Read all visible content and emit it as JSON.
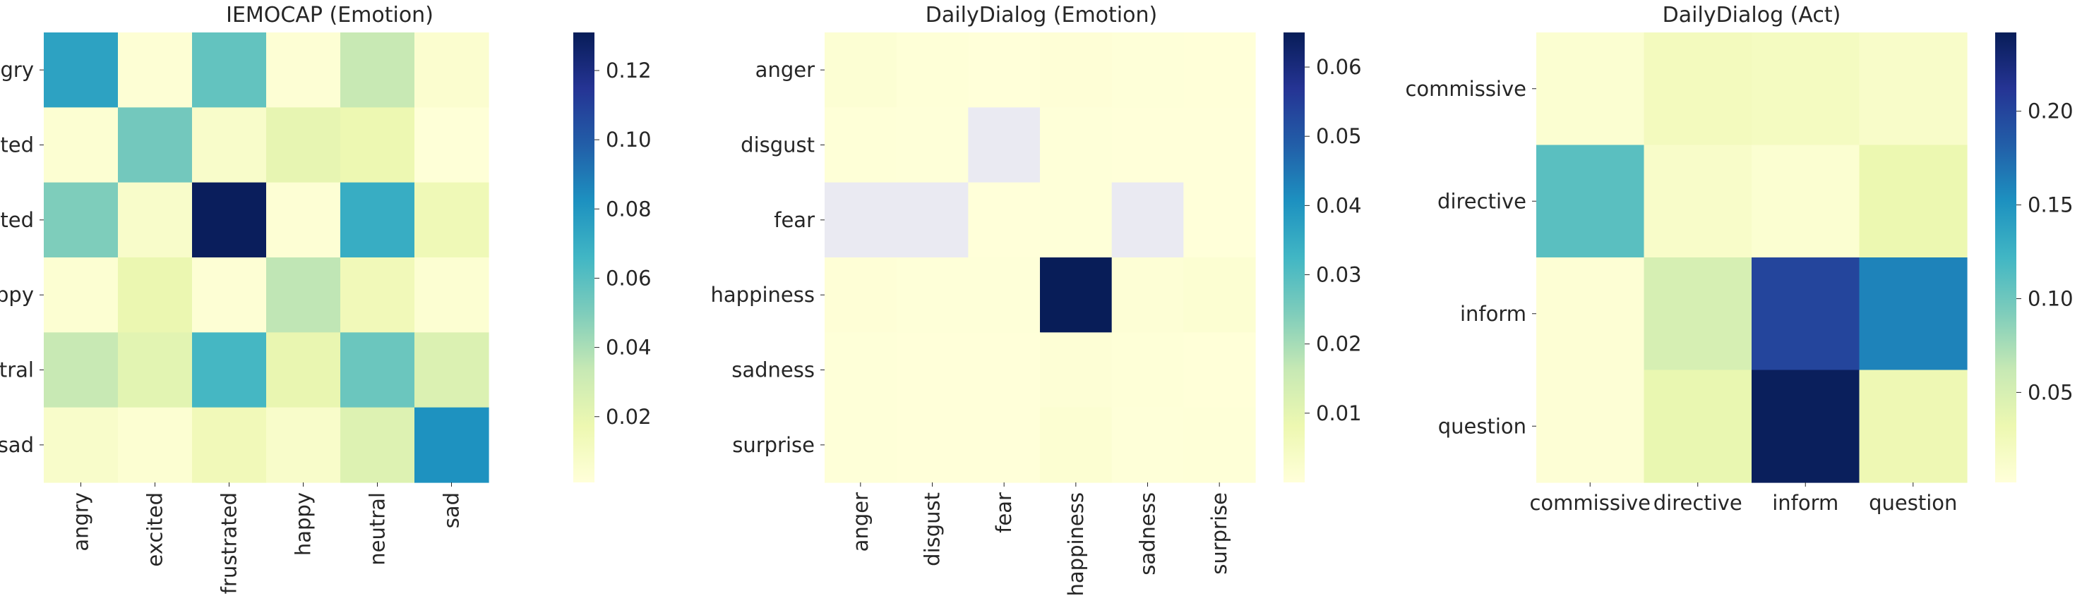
{
  "chart_data": [
    {
      "type": "heatmap",
      "title": "IEMOCAP (Emotion)",
      "xlabel": "",
      "ylabel": "",
      "x_categories": [
        "angry",
        "excited",
        "frustrated",
        "happy",
        "neutral",
        "sad"
      ],
      "y_categories": [
        "angry",
        "excited",
        "frustrated",
        "happy",
        "neutral",
        "sad"
      ],
      "values": [
        [
          0.075,
          0.003,
          0.057,
          0.003,
          0.033,
          0.005
        ],
        [
          0.004,
          0.053,
          0.007,
          0.02,
          0.017,
          0.002
        ],
        [
          0.05,
          0.007,
          0.13,
          0.003,
          0.07,
          0.015
        ],
        [
          0.004,
          0.018,
          0.003,
          0.035,
          0.014,
          0.004
        ],
        [
          0.033,
          0.022,
          0.065,
          0.019,
          0.055,
          0.025
        ],
        [
          0.007,
          0.004,
          0.014,
          0.007,
          0.024,
          0.082
        ]
      ],
      "colorbar": {
        "min": 0.001,
        "max": 0.131,
        "ticks": [
          "0.02",
          "0.04",
          "0.06",
          "0.08",
          "0.10",
          "0.12"
        ],
        "tick_values": [
          0.02,
          0.04,
          0.06,
          0.08,
          0.1,
          0.12
        ],
        "colormap": "YlGnBu"
      }
    },
    {
      "type": "heatmap",
      "title": "DailyDialog (Emotion)",
      "xlabel": "",
      "ylabel": "",
      "x_categories": [
        "anger",
        "disgust",
        "fear",
        "happiness",
        "sadness",
        "surprise"
      ],
      "y_categories": [
        "anger",
        "disgust",
        "fear",
        "happiness",
        "sadness",
        "surprise"
      ],
      "values": [
        [
          0.0012,
          0.0004,
          0.0001,
          0.0006,
          0.0003,
          0.0002
        ],
        [
          0.0004,
          0.0003,
          null,
          0.0003,
          0.0001,
          0.0001
        ],
        [
          null,
          null,
          0.0001,
          0.0003,
          null,
          0.0001
        ],
        [
          0.0006,
          0.0003,
          0.0003,
          0.065,
          0.0008,
          0.0015
        ],
        [
          0.0003,
          0.0001,
          0.0001,
          0.0008,
          0.0004,
          0.0002
        ],
        [
          0.0003,
          0.0001,
          0.0001,
          0.0015,
          0.0003,
          0.0004
        ]
      ],
      "colorbar": {
        "min": 0.0,
        "max": 0.065,
        "ticks": [
          "0.01",
          "0.02",
          "0.03",
          "0.04",
          "0.05",
          "0.06"
        ],
        "tick_values": [
          0.01,
          0.02,
          0.03,
          0.04,
          0.05,
          0.06
        ],
        "colormap": "YlGnBu"
      }
    },
    {
      "type": "heatmap",
      "title": "DailyDialog (Act)",
      "xlabel": "",
      "ylabel": "",
      "x_categories": [
        "commissive",
        "directive",
        "inform",
        "question"
      ],
      "y_categories": [
        "commissive",
        "directive",
        "inform",
        "question"
      ],
      "values": [
        [
          0.008,
          0.022,
          0.02,
          0.014
        ],
        [
          0.11,
          0.014,
          0.008,
          0.033
        ],
        [
          0.006,
          0.05,
          0.2,
          0.16
        ],
        [
          0.005,
          0.035,
          0.24,
          0.03
        ]
      ],
      "colorbar": {
        "min": 0.002,
        "max": 0.242,
        "ticks": [
          "0.05",
          "0.10",
          "0.15",
          "0.20"
        ],
        "tick_values": [
          0.05,
          0.1,
          0.15,
          0.2
        ],
        "colormap": "YlGnBu"
      }
    }
  ],
  "colors": {
    "ylgnbu": [
      "#ffffd9",
      "#edf8b1",
      "#c7e9b4",
      "#7fcdbb",
      "#41b6c4",
      "#1d91c0",
      "#225ea8",
      "#253494",
      "#081d58"
    ],
    "missing": "#eaeaf2",
    "text": "#262626"
  }
}
